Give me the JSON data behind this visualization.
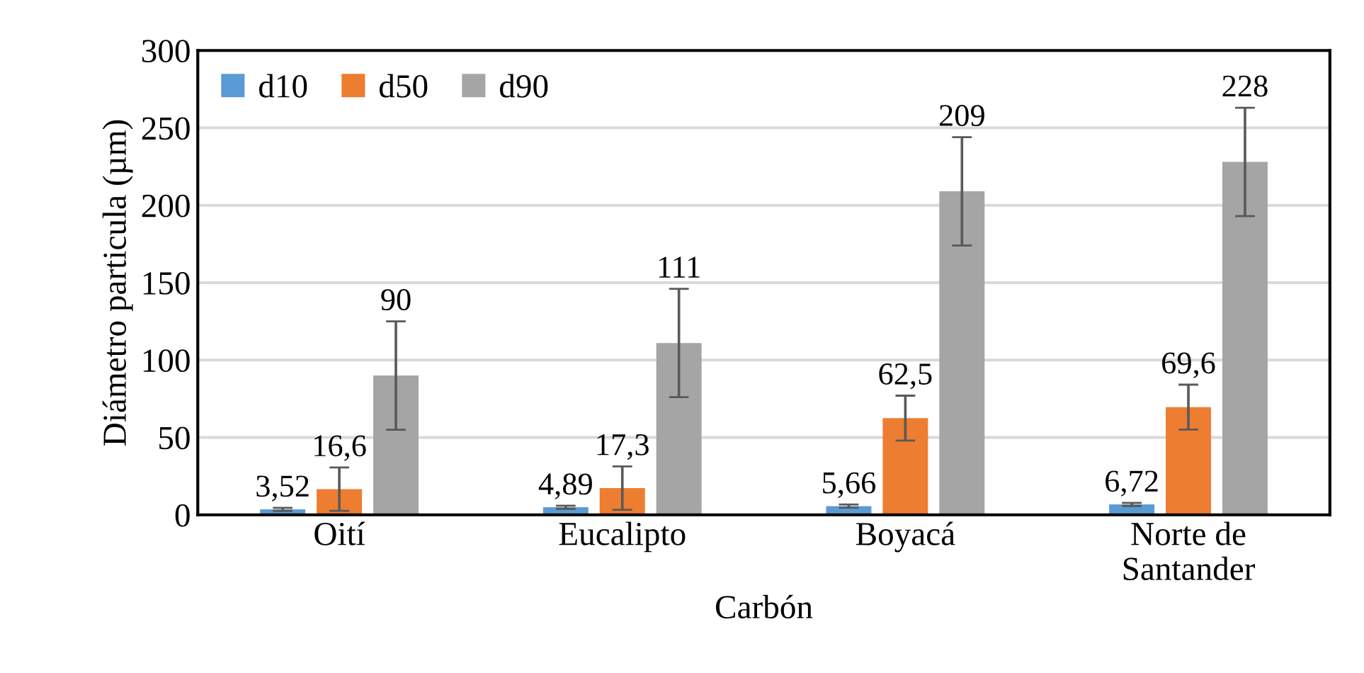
{
  "chart_data": {
    "type": "bar",
    "xlabel": "Carbón",
    "ylabel": "Diámetro particula (µm)",
    "categories": [
      "Oití",
      "Eucalipto",
      "Boyacá",
      "Norte de\nSantander"
    ],
    "series": [
      {
        "name": "d10",
        "color": "#5b9bd5",
        "values": [
          3.52,
          4.89,
          5.66,
          6.72
        ],
        "errors": [
          1,
          1,
          1,
          1
        ],
        "value_labels": [
          "3,52",
          "4,89",
          "5,66",
          "6,72"
        ]
      },
      {
        "name": "d50",
        "color": "#ed7d31",
        "values": [
          16.6,
          17.3,
          62.5,
          69.6
        ],
        "errors": [
          14,
          14,
          14.5,
          14.5
        ],
        "value_labels": [
          "16,6",
          "17,3",
          "62,5",
          "69,6"
        ]
      },
      {
        "name": "d90",
        "color": "#a5a5a5",
        "values": [
          90,
          111,
          209,
          228
        ],
        "errors": [
          35,
          35,
          35,
          35
        ],
        "value_labels": [
          "90",
          "111",
          "209",
          "228"
        ]
      }
    ],
    "ylim": [
      0,
      300
    ],
    "yticks": [
      0,
      50,
      100,
      150,
      200,
      250,
      300
    ],
    "grid": "y",
    "legend": "top left"
  }
}
